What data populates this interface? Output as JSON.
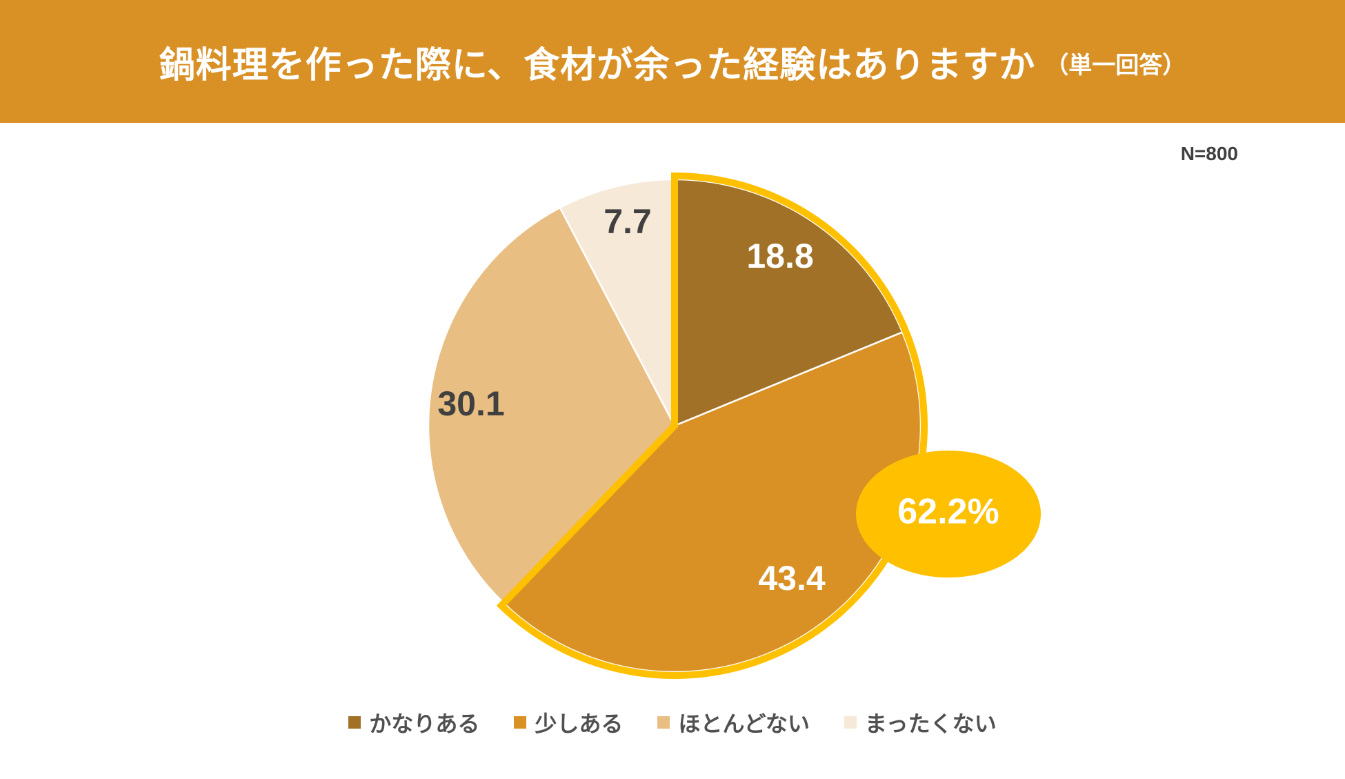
{
  "header": {
    "title": "鍋料理を作った際に、食材が余った経験はありますか",
    "subtitle": "（単一回答）"
  },
  "sample_size": "N=800",
  "colors": {
    "header_bg": "#D99126",
    "highlight": "#FFC000",
    "title_text": "#FFFFFF"
  },
  "chart_data": {
    "type": "pie",
    "title": "鍋料理を作った際に、食材が余った経験はありますか",
    "unit": "%",
    "categories": [
      "かなりある",
      "少しある",
      "ほとんどない",
      "まったくない"
    ],
    "values": [
      18.8,
      43.4,
      30.1,
      7.7
    ],
    "value_labels": [
      "18.8",
      "43.4",
      "30.1",
      "7.7"
    ],
    "colors": [
      "#A07127",
      "#D99126",
      "#E8BE82",
      "#F7E9D8"
    ],
    "label_colors": [
      "#FFFFFF",
      "#FFFFFF",
      "#404040",
      "#404040"
    ],
    "start_angle": "12 o'clock, clockwise",
    "highlight": {
      "categories": [
        "かなりある",
        "少しある"
      ],
      "total_label": "62.2%",
      "color": "#FFC000"
    },
    "legend": {
      "position": "bottom",
      "entries": [
        "かなりある",
        "少しある",
        "ほとんどない",
        "まったくない"
      ]
    }
  }
}
